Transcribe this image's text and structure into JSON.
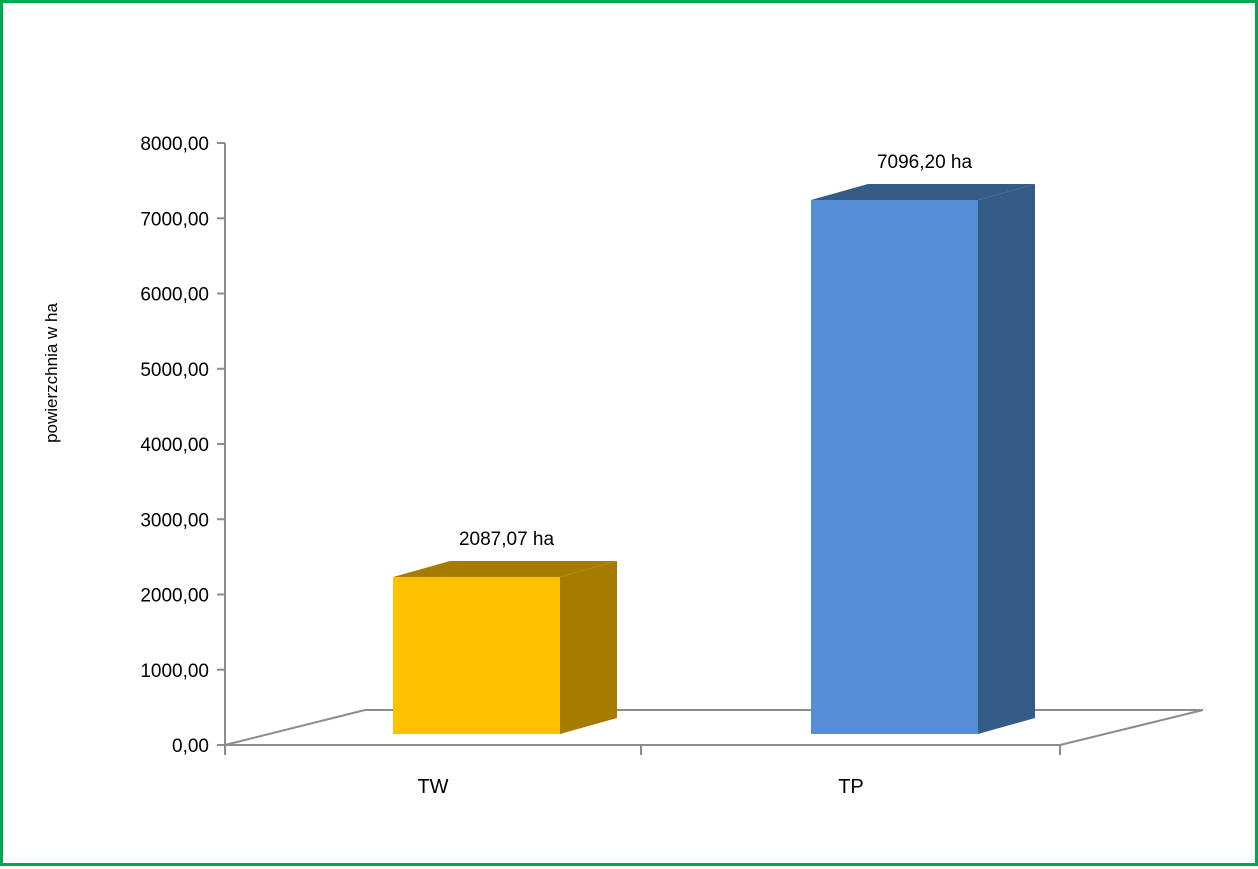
{
  "chart_data": {
    "type": "bar",
    "categories": [
      "TW",
      "TP"
    ],
    "values": [
      2087.07,
      7096.2
    ],
    "data_labels": [
      "2087,07 ha",
      "7096,20 ha"
    ],
    "ylabel": "powierzchnia w ha",
    "ylim": [
      0,
      8000
    ],
    "y_ticks": [
      0,
      1000,
      2000,
      3000,
      4000,
      5000,
      6000,
      7000,
      8000
    ],
    "y_tick_labels": [
      "0,00",
      "1000,00",
      "2000,00",
      "3000,00",
      "4000,00",
      "5000,00",
      "6000,00",
      "7000,00",
      "8000,00"
    ],
    "colors": [
      "#FFC000",
      "#558ED5"
    ],
    "side_colors": [
      "#A67C00",
      "#355B87"
    ],
    "style": "3d-column",
    "grid": false,
    "legend": "none"
  },
  "frame_color": "#00A650"
}
